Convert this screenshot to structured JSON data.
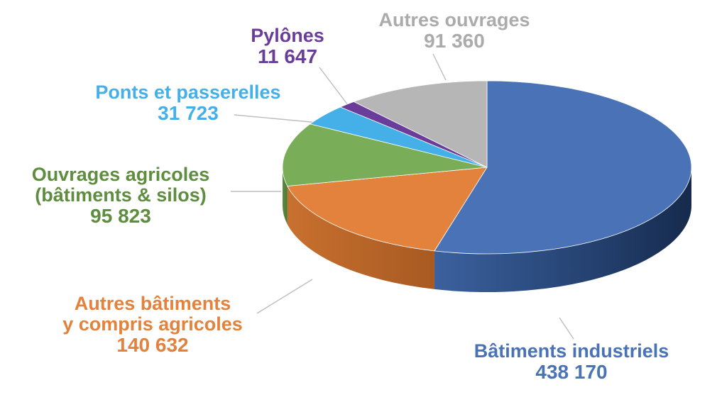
{
  "chart_data": {
    "type": "pie",
    "style": "3d",
    "title": "",
    "slices": [
      {
        "id": "industriels",
        "name": "Bâtiments industriels",
        "value": 438170,
        "display": "438 170",
        "color": "#4a72b6"
      },
      {
        "id": "autres-bat",
        "name_lines": [
          "Autres bâtiments",
          "y compris agricoles"
        ],
        "value": 140632,
        "display": "140 632",
        "color": "#e2823c"
      },
      {
        "id": "agricoles",
        "name_lines": [
          "Ouvrages agricoles",
          "(bâtiments & silos)"
        ],
        "value": 95823,
        "display": "95 823",
        "color": "#79ad58"
      },
      {
        "id": "ponts",
        "name": "Ponts et passerelles",
        "value": 31723,
        "display": "31 723",
        "color": "#45b0e8"
      },
      {
        "id": "pylones",
        "name": "Pylônes",
        "value": 11647,
        "display": "11 647",
        "color": "#6a3d9a"
      },
      {
        "id": "autres-ouv",
        "name": "Autres ouvrages",
        "value": 91360,
        "display": "91 360",
        "color": "#b6b6b6"
      }
    ],
    "label_colors": {
      "industriels": "#4a72b6",
      "autres-bat": "#e2823c",
      "agricoles": "#5f8d3f",
      "ponts": "#45b0e8",
      "pylones": "#6a3d9a",
      "autres-ouv": "#ababab"
    }
  }
}
